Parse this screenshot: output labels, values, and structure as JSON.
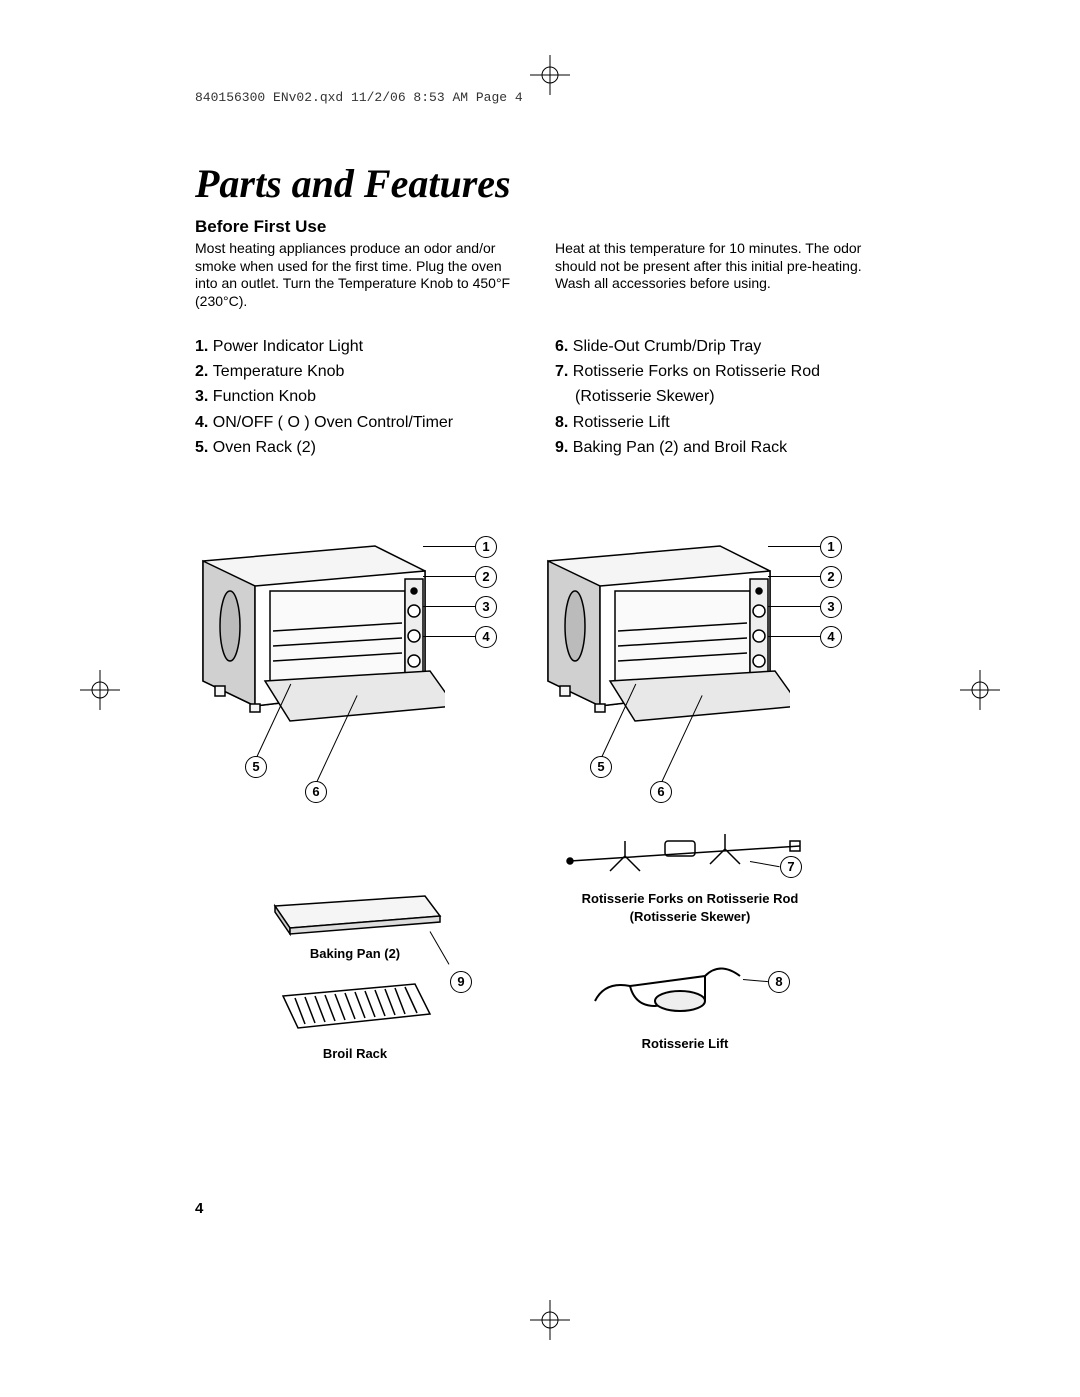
{
  "header": "840156300 ENv02.qxd  11/2/06  8:53 AM  Page 4",
  "title": "Parts and Features",
  "subtitle": "Before First Use",
  "intro": {
    "left": "Most heating appliances produce an odor and/or smoke when used for the first time. Plug the oven into an outlet. Turn the Temperature Knob to 450°F (230°C).",
    "right": "Heat at this temperature for 10 minutes. The odor should not be present after this initial pre-heating. Wash all accessories before using."
  },
  "parts": {
    "left": [
      {
        "n": "1.",
        "t": "Power Indicator Light"
      },
      {
        "n": "2.",
        "t": "Temperature Knob"
      },
      {
        "n": "3.",
        "t": "Function Knob"
      },
      {
        "n": "4.",
        "t": "ON/OFF ( O ) Oven Control/Timer"
      },
      {
        "n": "5.",
        "t": "Oven Rack (2)"
      }
    ],
    "right": [
      {
        "n": "6.",
        "t": "Slide-Out Crumb/Drip Tray"
      },
      {
        "n": "7.",
        "t": "Rotisserie Forks on Rotisserie Rod"
      },
      {
        "n": "",
        "t": "(Rotisserie Skewer)",
        "indent": true
      },
      {
        "n": "8.",
        "t": "Rotisserie Lift"
      },
      {
        "n": "9.",
        "t": "Baking Pan (2) and Broil Rack"
      }
    ]
  },
  "callouts": {
    "oven_right": [
      "1",
      "2",
      "3",
      "4"
    ],
    "oven_bottom": [
      "5",
      "6"
    ],
    "rotisserie_rod": "7",
    "rotisserie_lift": "8",
    "baking": "9"
  },
  "labels": {
    "baking_pan": "Baking Pan (2)",
    "broil_rack": "Broil Rack",
    "rotisserie_rod_l1": "Rotisserie Forks on Rotisserie Rod",
    "rotisserie_rod_l2": "(Rotisserie Skewer)",
    "rotisserie_lift": "Rotisserie Lift"
  },
  "page_number": "4",
  "colors": {
    "text": "#000000",
    "bg": "#ffffff",
    "diagram_stroke": "#000000",
    "diagram_fill_light": "#f5f5f5",
    "diagram_fill_med": "#d0d0d0"
  }
}
